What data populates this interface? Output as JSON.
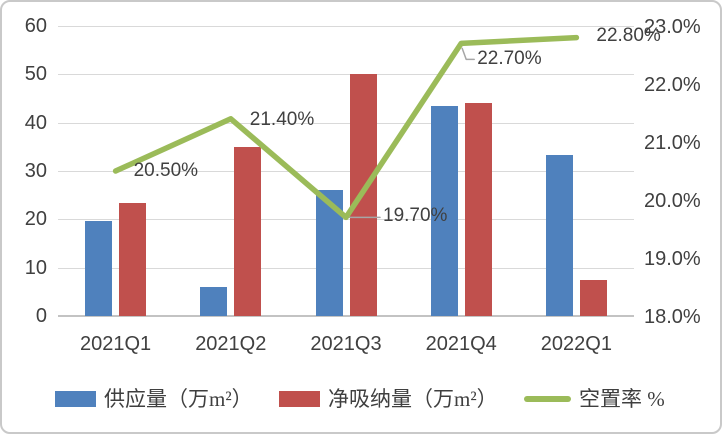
{
  "chart_data": {
    "type": "bar",
    "subtype": "combo-bar-line",
    "categories": [
      "2021Q1",
      "2021Q2",
      "2021Q3",
      "2021Q4",
      "2022Q1"
    ],
    "series": [
      {
        "name": "供应量（万m²）",
        "type": "bar",
        "axis": "left",
        "color": "#4F81BD",
        "values": [
          19.6,
          6.0,
          26.0,
          43.5,
          33.4
        ]
      },
      {
        "name": "净吸纳量（万m²）",
        "type": "bar",
        "axis": "left",
        "color": "#C0504D",
        "values": [
          23.3,
          35.0,
          50.0,
          44.0,
          7.5
        ]
      },
      {
        "name": "空置率 %",
        "type": "line",
        "axis": "right",
        "color": "#9BBB59",
        "values": [
          20.5,
          21.4,
          19.7,
          22.7,
          22.8
        ],
        "point_labels": [
          "20.50%",
          "21.40%",
          "19.70%",
          "22.70%",
          "22.80%"
        ]
      }
    ],
    "left_axis": {
      "min": 0,
      "max": 60,
      "step": 10,
      "tick_labels": [
        "0",
        "10",
        "20",
        "30",
        "40",
        "50",
        "60"
      ]
    },
    "right_axis": {
      "min": 18,
      "max": 23,
      "step": 1,
      "tick_labels": [
        "18.0%",
        "19.0%",
        "20.0%",
        "21.0%",
        "22.0%",
        "23.0%"
      ]
    },
    "grid": true,
    "legend_position": "bottom",
    "title": "",
    "xlabel": "",
    "ylabel": ""
  },
  "colors": {
    "supply_bar": "#4F81BD",
    "absorption_bar": "#C0504D",
    "vacancy_line": "#9BBB59",
    "gridline": "#d9d9d9",
    "axis_text": "#404040",
    "leader_line": "#a6a6a6"
  },
  "legend": {
    "items": [
      {
        "label": "供应量（万m²）",
        "color": "#4F81BD",
        "kind": "bar"
      },
      {
        "label": "净吸纳量（万m²）",
        "color": "#C0504D",
        "kind": "bar"
      },
      {
        "label": "空置率 %",
        "color": "#9BBB59",
        "kind": "line"
      }
    ]
  }
}
